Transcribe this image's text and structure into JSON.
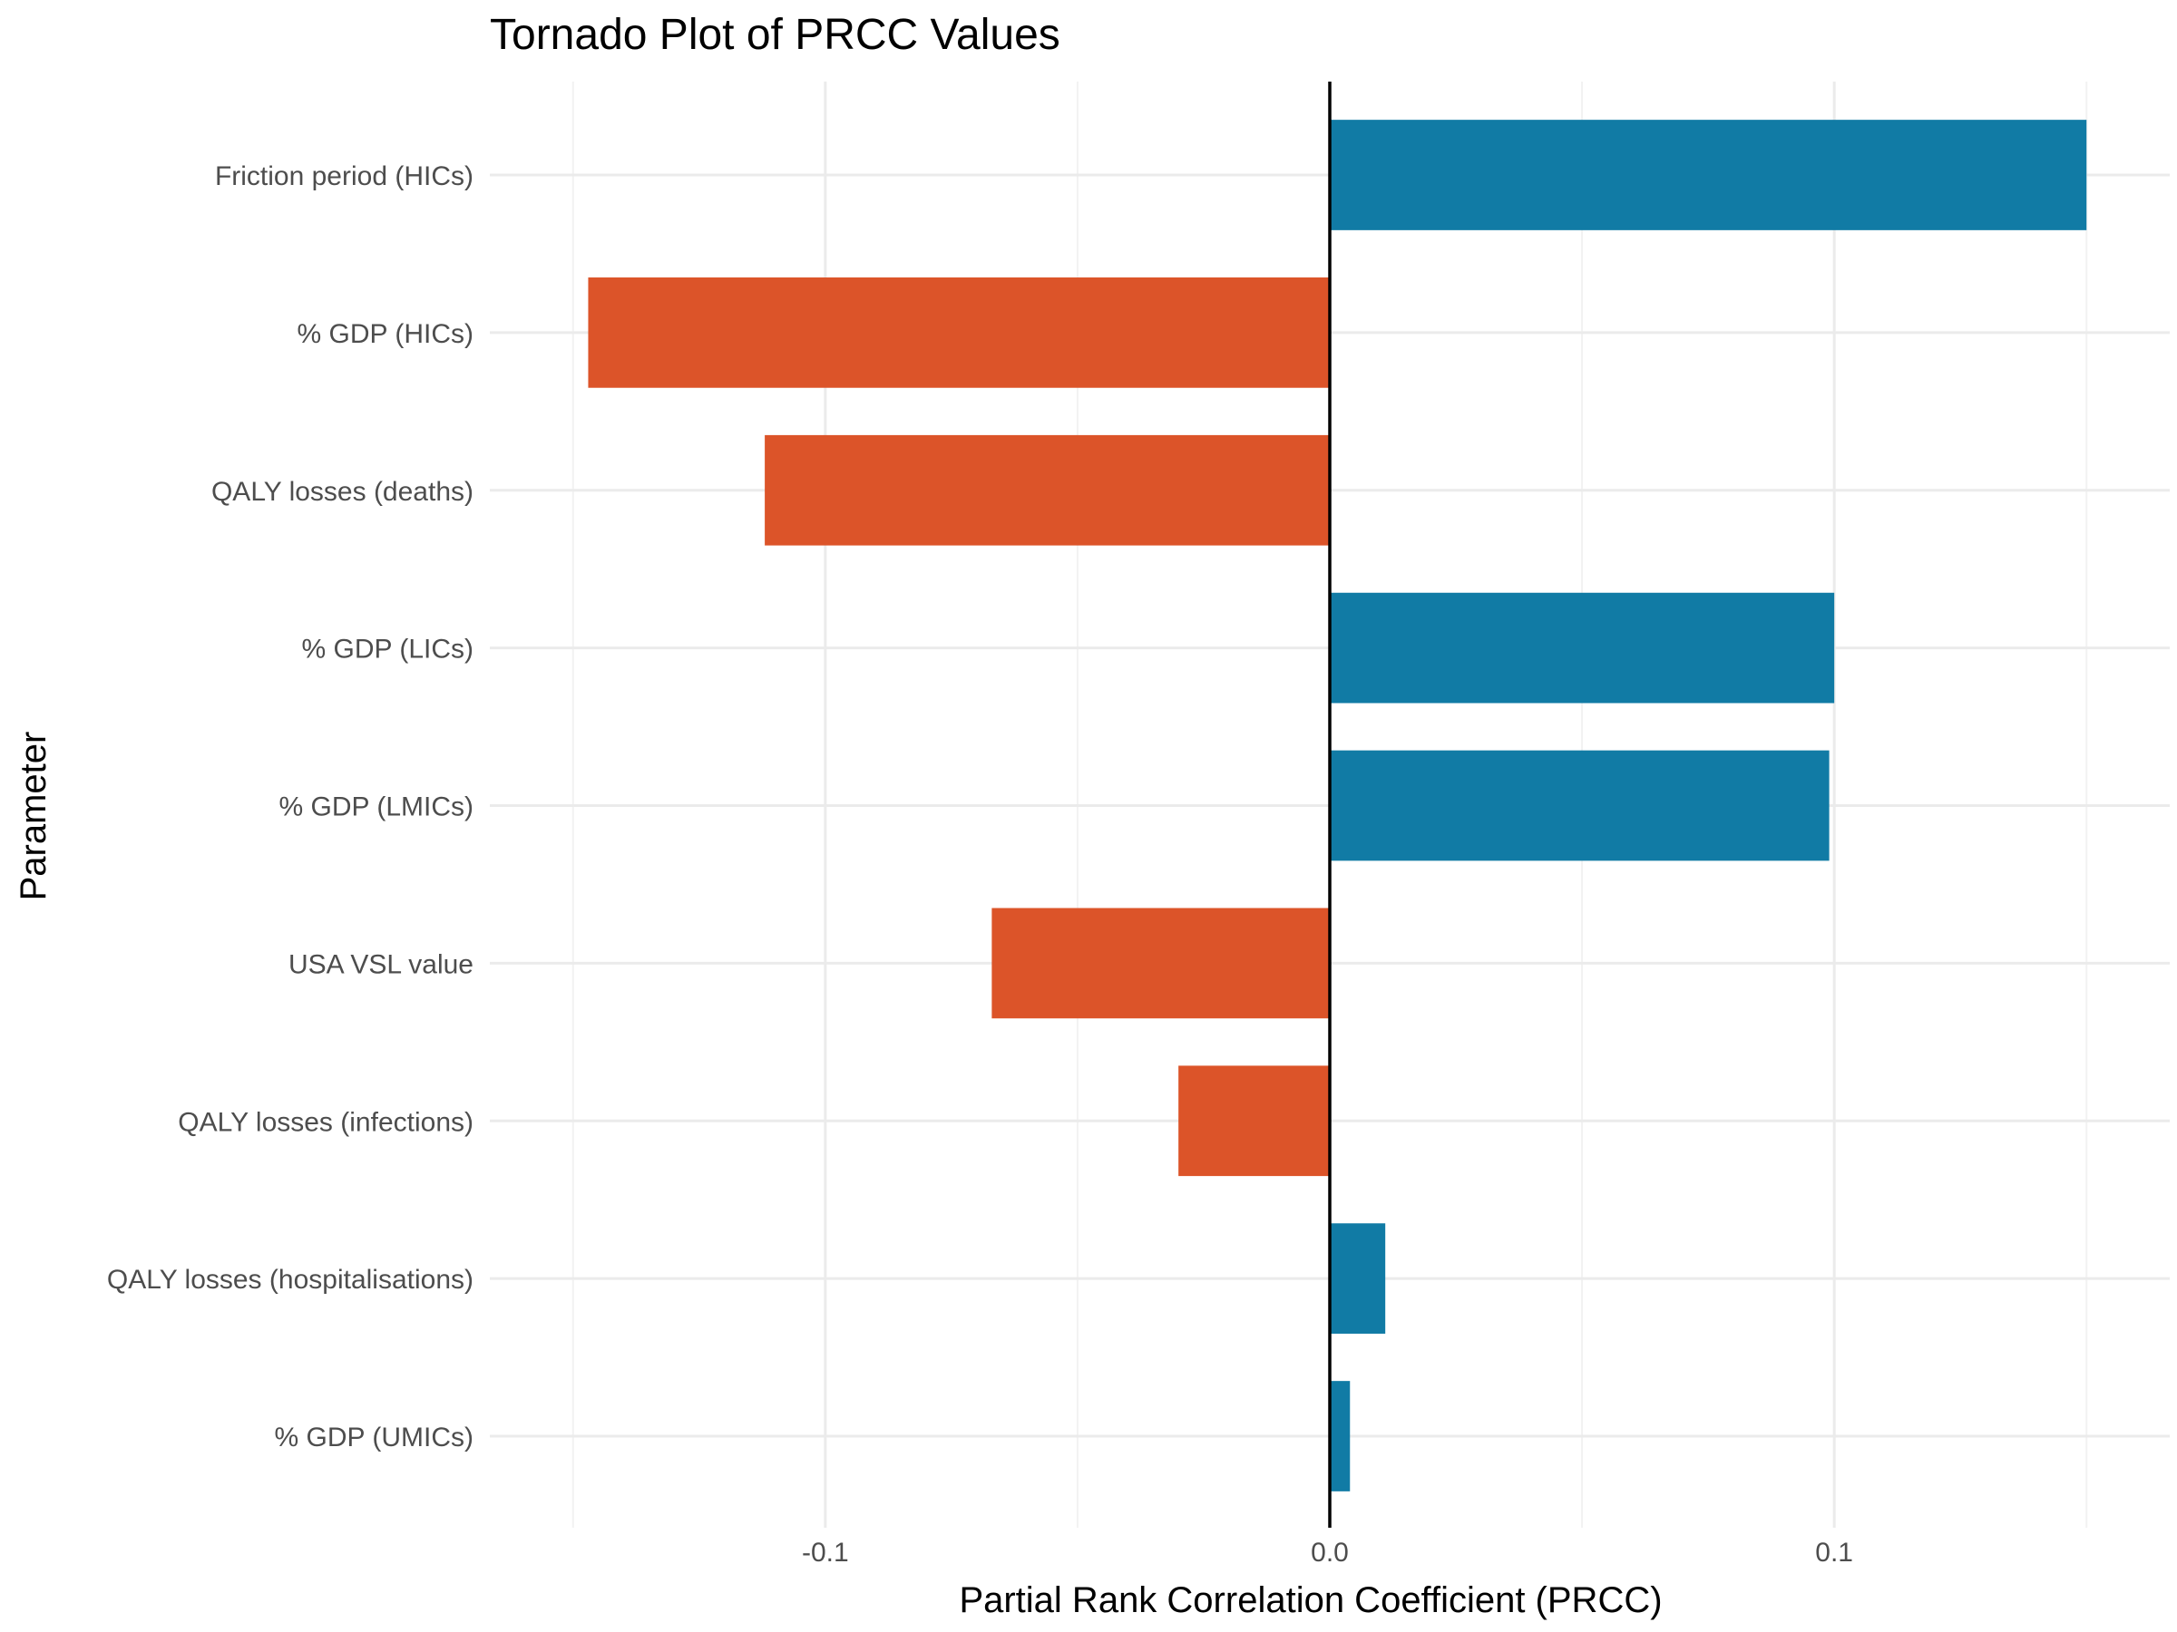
{
  "chart_data": {
    "type": "bar",
    "orientation": "horizontal",
    "title": "Tornado Plot of PRCC Values",
    "xlabel": "Partial Rank Correlation Coefficient (PRCC)",
    "ylabel": "Parameter",
    "xlim": [
      -0.1665,
      0.1665
    ],
    "x_ticks": [
      {
        "value": -0.1,
        "label": "-0.1"
      },
      {
        "value": 0.0,
        "label": "0.0"
      },
      {
        "value": 0.1,
        "label": "0.1"
      }
    ],
    "x_minor_ticks": [
      -0.15,
      -0.05,
      0.05,
      0.15
    ],
    "categories": [
      "Friction period (HICs)",
      "% GDP (HICs)",
      "QALY losses (deaths)",
      "% GDP (LICs)",
      "% GDP (LMICs)",
      "USA VSL value",
      "QALY losses (infections)",
      "QALY losses (hospitalisations)",
      "% GDP (UMICs)"
    ],
    "values": [
      0.15,
      -0.147,
      -0.112,
      0.1,
      0.099,
      -0.067,
      -0.03,
      0.011,
      0.004
    ],
    "colors": {
      "positive": "#117ba5",
      "negative": "#dc5429"
    },
    "grid": true,
    "legend": "none"
  }
}
